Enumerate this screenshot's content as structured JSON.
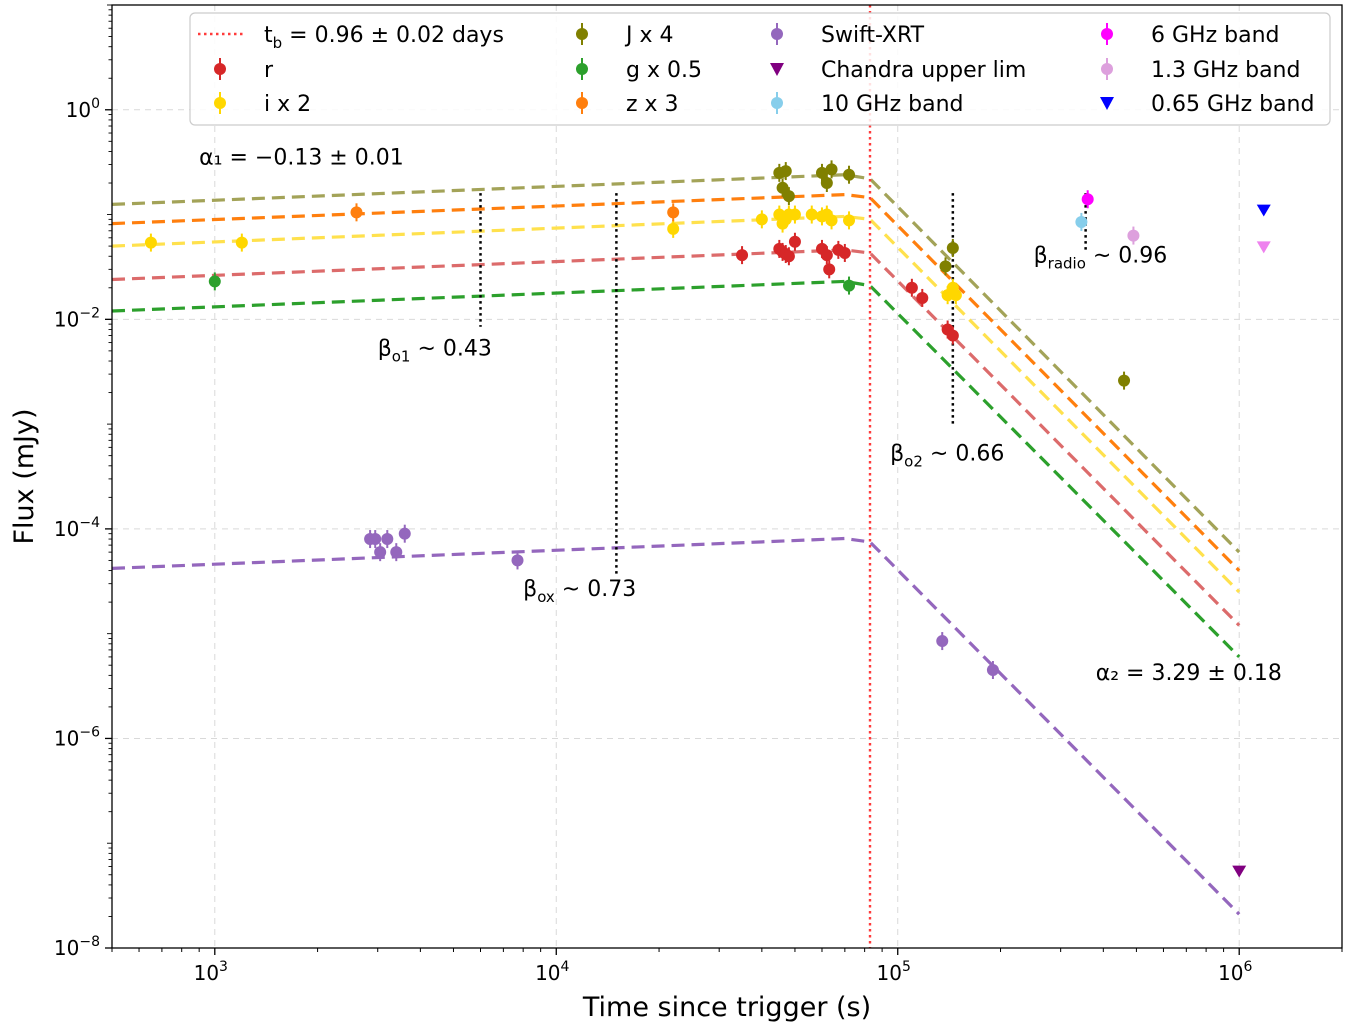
{
  "chart_data": {
    "type": "scatter",
    "title": "",
    "xlabel": "Time since trigger (s)",
    "ylabel": "Flux (mJy)",
    "xscale": "log",
    "yscale": "log",
    "xlim": [
      500,
      2000000
    ],
    "ylim": [
      1e-08,
      10
    ],
    "grid": true,
    "legend_position": "top",
    "x_ticks": [
      {
        "value": 1000,
        "base": "10",
        "exp": "3"
      },
      {
        "value": 10000,
        "base": "10",
        "exp": "4"
      },
      {
        "value": 100000,
        "base": "10",
        "exp": "5"
      },
      {
        "value": 1000000,
        "base": "10",
        "exp": "6"
      }
    ],
    "y_ticks": [
      {
        "value": 1e-08,
        "base": "10",
        "exp": "−8"
      },
      {
        "value": 1e-06,
        "base": "10",
        "exp": "−6"
      },
      {
        "value": 0.0001,
        "base": "10",
        "exp": "−4"
      },
      {
        "value": 0.01,
        "base": "10",
        "exp": "−2"
      },
      {
        "value": 1,
        "base": "10",
        "exp": "0"
      }
    ],
    "break_time": {
      "value": 82944,
      "label": "t_b = 0.96 ± 0.02 days",
      "color": "#ff3b3b"
    },
    "model_lines": [
      {
        "band": "J",
        "color": "#a3a358",
        "points": [
          [
            500,
            0.125
          ],
          [
            70000,
            0.24
          ],
          [
            82944,
            0.22
          ],
          [
            1000000,
            6e-05
          ]
        ]
      },
      {
        "band": "z",
        "color": "#ff7f0e",
        "points": [
          [
            500,
            0.082
          ],
          [
            70000,
            0.155
          ],
          [
            82944,
            0.145
          ],
          [
            1000000,
            4e-05
          ]
        ]
      },
      {
        "band": "i",
        "color": "#ffe14d",
        "points": [
          [
            500,
            0.05
          ],
          [
            70000,
            0.096
          ],
          [
            82944,
            0.09
          ],
          [
            1000000,
            2.5e-05
          ]
        ]
      },
      {
        "band": "r",
        "color": "#dc6b6b",
        "points": [
          [
            500,
            0.024
          ],
          [
            70000,
            0.046
          ],
          [
            82944,
            0.043
          ],
          [
            1000000,
            1.2e-05
          ]
        ]
      },
      {
        "band": "g",
        "color": "#2ca02c",
        "points": [
          [
            500,
            0.012
          ],
          [
            70000,
            0.023
          ],
          [
            82944,
            0.021
          ],
          [
            1000000,
            6e-06
          ]
        ]
      },
      {
        "band": "X",
        "color": "#9467bd",
        "points": [
          [
            500,
            4.2e-05
          ],
          [
            70000,
            8.1e-05
          ],
          [
            82944,
            7.5e-05
          ],
          [
            1000000,
            2.1e-08
          ]
        ]
      }
    ],
    "series": [
      {
        "name": "r",
        "color": "#d62728",
        "marker": "circle",
        "points": [
          [
            35000,
            0.041
          ],
          [
            45000,
            0.047
          ],
          [
            46000,
            0.044
          ],
          [
            47000,
            0.042
          ],
          [
            48000,
            0.04
          ],
          [
            50000,
            0.055
          ],
          [
            60000,
            0.047
          ],
          [
            62000,
            0.041
          ],
          [
            63000,
            0.03
          ],
          [
            67000,
            0.046
          ],
          [
            70000,
            0.043
          ],
          [
            110000,
            0.02
          ],
          [
            118000,
            0.016
          ],
          [
            140000,
            0.008
          ],
          [
            145000,
            0.007
          ]
        ]
      },
      {
        "name": "i x 2",
        "color": "#ffd700",
        "marker": "circle",
        "points": [
          [
            650,
            0.054
          ],
          [
            1200,
            0.054
          ],
          [
            22000,
            0.073
          ],
          [
            40000,
            0.09
          ],
          [
            45000,
            0.1
          ],
          [
            46000,
            0.082
          ],
          [
            47000,
            0.09
          ],
          [
            48000,
            0.1
          ],
          [
            50000,
            0.1
          ],
          [
            56000,
            0.1
          ],
          [
            60000,
            0.096
          ],
          [
            62000,
            0.1
          ],
          [
            64000,
            0.088
          ],
          [
            72000,
            0.088
          ],
          [
            140000,
            0.017
          ],
          [
            145000,
            0.02
          ],
          [
            148000,
            0.017
          ]
        ]
      },
      {
        "name": "J x 4",
        "color": "#808000",
        "marker": "circle",
        "points": [
          [
            45000,
            0.25
          ],
          [
            46000,
            0.18
          ],
          [
            47000,
            0.26
          ],
          [
            48000,
            0.15
          ],
          [
            60000,
            0.25
          ],
          [
            62000,
            0.2
          ],
          [
            64000,
            0.27
          ],
          [
            72000,
            0.24
          ],
          [
            138000,
            0.032
          ],
          [
            145000,
            0.048
          ],
          [
            460000,
            0.0026
          ]
        ]
      },
      {
        "name": "g x 0.5",
        "color": "#2ca02c",
        "marker": "circle",
        "points": [
          [
            1000,
            0.023
          ],
          [
            72000,
            0.021
          ]
        ]
      },
      {
        "name": "z x 3",
        "color": "#ff7f0e",
        "marker": "circle",
        "points": [
          [
            2600,
            0.105
          ],
          [
            22000,
            0.105
          ]
        ]
      },
      {
        "name": "Swift-XRT",
        "color": "#9467bd",
        "marker": "circle",
        "points": [
          [
            2850,
            8e-05
          ],
          [
            2950,
            8e-05
          ],
          [
            3050,
            6e-05
          ],
          [
            3200,
            8e-05
          ],
          [
            3400,
            6e-05
          ],
          [
            3600,
            9e-05
          ],
          [
            7700,
            5e-05
          ],
          [
            135000,
            8.5e-06
          ],
          [
            190000,
            4.5e-06
          ]
        ]
      },
      {
        "name": "Chandra upper lim",
        "color": "#800080",
        "marker": "triangle-down",
        "points": [
          [
            1000000,
            5.4e-08
          ]
        ]
      },
      {
        "name": "10 GHz band",
        "color": "#87ceeb",
        "marker": "circle",
        "points": [
          [
            345000,
            0.085
          ]
        ]
      },
      {
        "name": "6 GHz band",
        "color": "#ff00ff",
        "marker": "circle",
        "points": [
          [
            360000,
            0.14
          ]
        ]
      },
      {
        "name": "1.3 GHz band",
        "color": "#dda0dd",
        "marker": "circle",
        "points": [
          [
            490000,
            0.063
          ]
        ]
      },
      {
        "name": "0.65 GHz band",
        "color": "#0000ff",
        "marker": "triangle-down",
        "points": [
          [
            1180000,
            0.11
          ]
        ]
      },
      {
        "name": "",
        "color": "#ee82ee",
        "marker": "triangle-down",
        "points": [
          [
            1180000,
            0.049
          ]
        ]
      }
    ],
    "legend": [
      {
        "label": "t_b = 0.96 ± 0.02 days",
        "type": "dotted-line",
        "color": "#ff3b3b"
      },
      {
        "label": "r",
        "type": "errorbar",
        "color": "#d62728"
      },
      {
        "label": "i x 2",
        "type": "errorbar",
        "color": "#ffd700"
      },
      {
        "label": "J x 4",
        "type": "errorbar",
        "color": "#808000"
      },
      {
        "label": "g x 0.5",
        "type": "errorbar",
        "color": "#2ca02c"
      },
      {
        "label": "z x 3",
        "type": "errorbar",
        "color": "#ff7f0e"
      },
      {
        "label": "Swift-XRT",
        "type": "errorbar",
        "color": "#9467bd"
      },
      {
        "label": "Chandra upper lim",
        "type": "triangle",
        "color": "#800080"
      },
      {
        "label": "10 GHz band",
        "type": "errorbar",
        "color": "#87ceeb"
      },
      {
        "label": "6 GHz band",
        "type": "errorbar",
        "color": "#ff00ff"
      },
      {
        "label": "1.3 GHz band",
        "type": "errorbar",
        "color": "#dda0dd"
      },
      {
        "label": "0.65 GHz band",
        "type": "triangle",
        "color": "#0000ff"
      }
    ],
    "annotations": [
      {
        "id": "alpha1",
        "text": "α₁ = −0.13 ± 0.01",
        "x": 900,
        "y": 0.3
      },
      {
        "id": "beta-o1",
        "text": "β_o1 ~ 0.43",
        "x": 3000,
        "y": 0.0045
      },
      {
        "id": "beta-ox",
        "text": "β_ox ~ 0.73",
        "x": 8000,
        "y": 2.3e-05
      },
      {
        "id": "beta-o2",
        "text": "β_o2 ~ 0.66",
        "x": 95000,
        "y": 0.00045
      },
      {
        "id": "beta-radio",
        "text": "β_radio ~ 0.96",
        "x": 250000,
        "y": 0.035
      },
      {
        "id": "alpha2",
        "text": "α₂ = 3.29 ± 0.18",
        "x": 380000,
        "y": 3.6e-06
      }
    ],
    "spectral_markers": [
      {
        "x": 6000,
        "y_top": 0.16,
        "y_bottom": 0.0085
      },
      {
        "x": 15000,
        "y_top": 0.16,
        "y_bottom": 3.5e-05
      },
      {
        "x": 145000,
        "y_top": 0.16,
        "y_bottom": 0.001
      },
      {
        "x": 355000,
        "y_top": 0.16,
        "y_bottom": 0.045
      }
    ]
  }
}
